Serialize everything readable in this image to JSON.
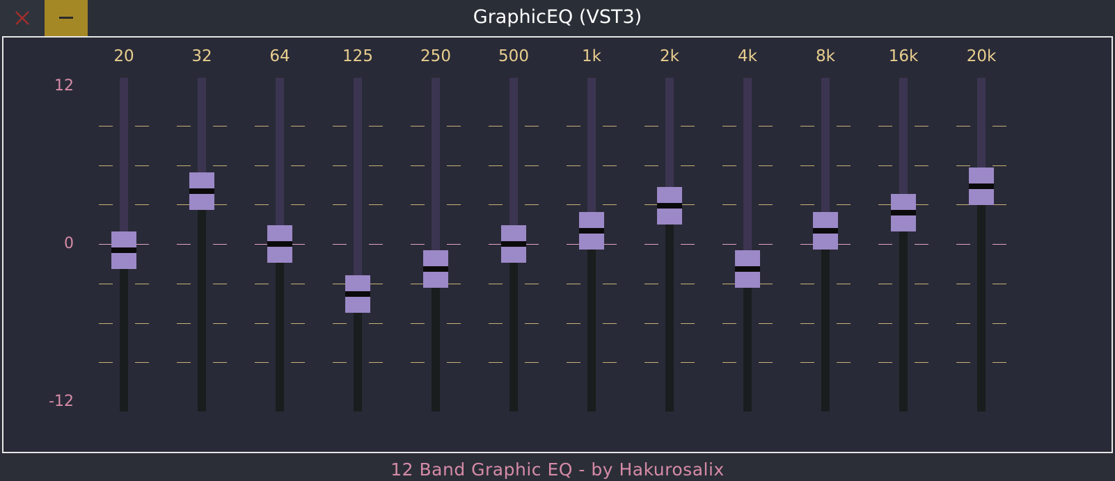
{
  "window": {
    "title": "GraphicEQ (VST3)",
    "close_icon": "close-icon",
    "minimize_icon": "minimize-icon"
  },
  "colors": {
    "accent_minimize": "#a58826",
    "close_glyph": "#a12d2d",
    "frequency_labels": "#e9cf8f",
    "db_labels": "#d68ba7",
    "slider_thumb": "#9c89c7"
  },
  "scale": {
    "top_label": "12",
    "mid_label": "0",
    "bottom_label": "-12",
    "min_db": -12,
    "max_db": 12
  },
  "bands": [
    {
      "label": "20",
      "gain_db": -0.5
    },
    {
      "label": "32",
      "gain_db": 4.0
    },
    {
      "label": "64",
      "gain_db": 0.0
    },
    {
      "label": "125",
      "gain_db": -3.8
    },
    {
      "label": "250",
      "gain_db": -1.9
    },
    {
      "label": "500",
      "gain_db": 0.0
    },
    {
      "label": "1k",
      "gain_db": 1.0
    },
    {
      "label": "2k",
      "gain_db": 2.9
    },
    {
      "label": "4k",
      "gain_db": -1.9
    },
    {
      "label": "8k",
      "gain_db": 1.0
    },
    {
      "label": "16k",
      "gain_db": 2.4
    },
    {
      "label": "20k",
      "gain_db": 4.4
    }
  ],
  "footer": {
    "credit": "12 Band Graphic EQ - by Hakurosalix"
  }
}
